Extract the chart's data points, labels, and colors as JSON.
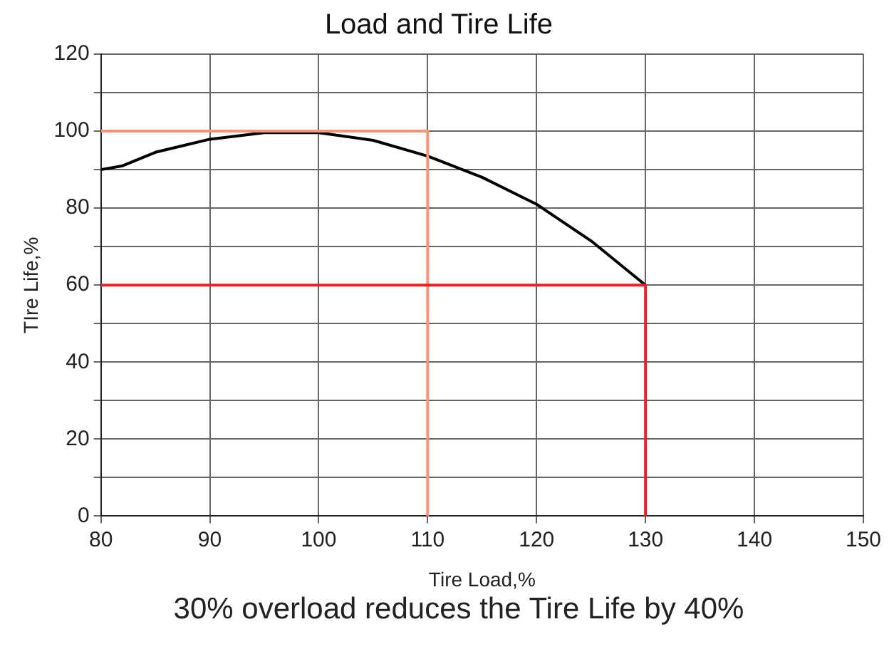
{
  "chart_data": {
    "type": "line",
    "title": "Load and Tire Life",
    "xlabel": "Tire Load,%",
    "ylabel": "TIre Life,%",
    "annotations": [
      "30% overload reduces the Tire Life by 40%"
    ],
    "xlim": [
      80,
      150
    ],
    "xticks": [
      80,
      90,
      100,
      110,
      120,
      130,
      140,
      150
    ],
    "ylim": [
      0,
      120
    ],
    "yticks": [
      0,
      {
        "value": 10,
        "label": null
      },
      20,
      {
        "value": 30,
        "label": null
      },
      40,
      {
        "value": 50,
        "label": null
      },
      60,
      {
        "value": 70,
        "label": null
      },
      80,
      {
        "value": 90,
        "label": null
      },
      100,
      {
        "value": 110,
        "label": null
      },
      120
    ],
    "grid": true,
    "legend": false,
    "marker": "none",
    "line_style": "solid",
    "series": [
      {
        "color": "#000000",
        "x": [
          80,
          82,
          85,
          90,
          95,
          100,
          105,
          110,
          115,
          120,
          125,
          130
        ],
        "values": [
          90,
          91,
          94.5,
          97.9,
          99.6,
          99.6,
          97.6,
          93.5,
          88,
          81,
          71.5,
          60
        ]
      },
      {
        "color": "#f4957a",
        "x": [
          80,
          110,
          110
        ],
        "values": [
          100,
          100,
          0
        ]
      },
      {
        "color": "#e8202a",
        "x": [
          80,
          130,
          130
        ],
        "values": [
          60,
          60,
          0
        ]
      }
    ]
  }
}
